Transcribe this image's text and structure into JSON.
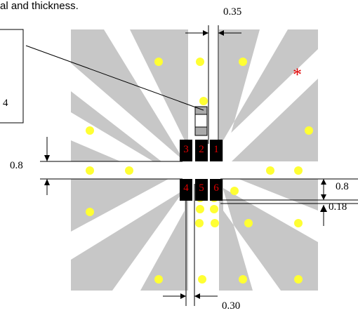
{
  "caption": "al and thickness.",
  "callout_box": {
    "text": "4"
  },
  "dimensions": {
    "top_gap": "0.35",
    "bottom_gap": "0.30",
    "left_vertical": "0.8",
    "right_vertical": "0.8",
    "right_small": "0.18"
  },
  "pads": [
    "3",
    "2",
    "1",
    "4",
    "5",
    "6"
  ],
  "marker": "*",
  "colors": {
    "board": "#c7c7c7",
    "trace": "#ffffff",
    "via": "#ffff33",
    "pad": "#000000",
    "pad_label": "#e00000",
    "marker": "#e00000"
  }
}
